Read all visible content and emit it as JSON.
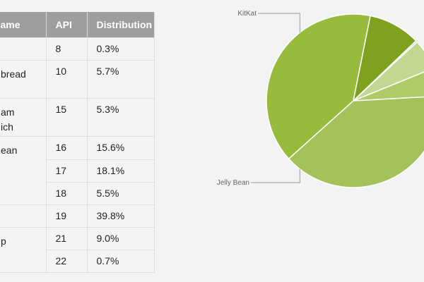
{
  "table": {
    "headers": [
      "ame",
      "API",
      "Distribution"
    ],
    "rows": [
      {
        "name": "",
        "api": "8",
        "dist": "0.3%"
      },
      {
        "name": "bread",
        "api": "10",
        "dist": "5.7%"
      },
      {
        "name": "am\nich",
        "api": "15",
        "dist": "5.3%"
      },
      {
        "name": "ean",
        "api": "16",
        "dist": "15.6%"
      },
      {
        "name": "",
        "api": "17",
        "dist": "18.1%"
      },
      {
        "name": "",
        "api": "18",
        "dist": "5.5%"
      },
      {
        "name": "",
        "api": "19",
        "dist": "39.8%"
      },
      {
        "name": "p",
        "api": "21",
        "dist": "9.0%"
      },
      {
        "name": "",
        "api": "22",
        "dist": "0.7%"
      }
    ]
  },
  "chart_data": {
    "type": "pie",
    "slices": [
      {
        "label": "KitKat",
        "value": 39.8,
        "color": "#97bb3c"
      },
      {
        "label": "",
        "value": 9.7,
        "color": "#7ea21e"
      },
      {
        "label": "",
        "value": 0.3,
        "color": "#c7dca0"
      },
      {
        "label": "",
        "value": 5.7,
        "color": "#c1d792"
      },
      {
        "label": "",
        "value": 5.3,
        "color": "#aecb68"
      },
      {
        "label": "Jelly Bean",
        "value": 39.2,
        "color": "#a4c25a"
      }
    ]
  }
}
